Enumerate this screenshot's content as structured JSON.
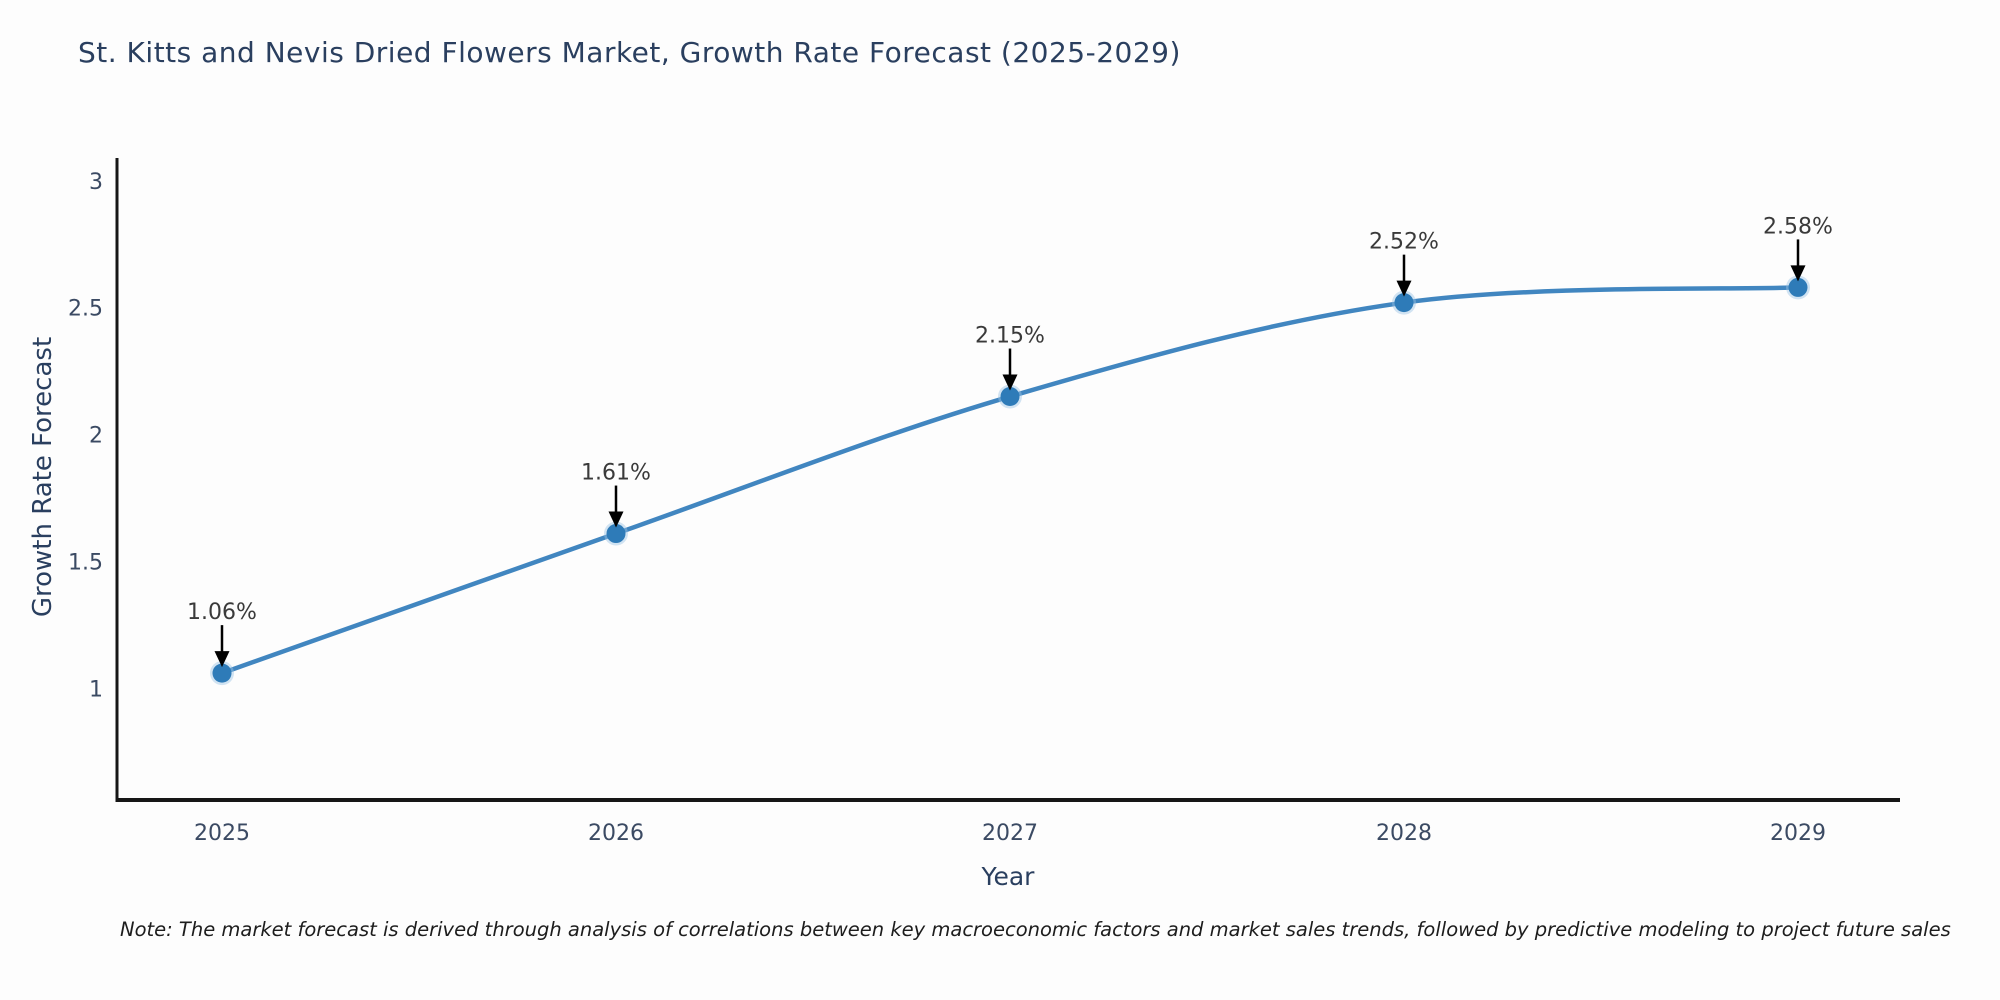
{
  "title": "St. Kitts and Nevis Dried Flowers Market, Growth Rate Forecast (2025-2029)",
  "note": "Note: The market forecast is derived through analysis of correlations between key macroeconomic factors and market sales trends, followed by predictive modeling to project future sales",
  "chart_data": {
    "type": "line",
    "title": "St. Kitts and Nevis Dried Flowers Market, Growth Rate Forecast (2025-2029)",
    "categories": [
      "2025",
      "2026",
      "2027",
      "2028",
      "2029"
    ],
    "values": [
      1.06,
      1.61,
      2.15,
      2.52,
      2.58
    ],
    "point_labels": [
      "1.06%",
      "1.61%",
      "2.15%",
      "2.52%",
      "2.58%"
    ],
    "xlabel": "Year",
    "ylabel": "Growth Rate Forecast",
    "yticks": [
      1,
      1.5,
      2,
      2.5,
      3
    ],
    "ylim": [
      0.56,
      3.09
    ],
    "grid": false,
    "legend": "none",
    "line_shape": "spline",
    "colors": {
      "line": "#4186c0",
      "marker": "#2e7bb8",
      "marker_halo": "#9cc4e4",
      "axis": "#161616",
      "annotation_arrow": "#000000",
      "text": "#2a3f5f"
    }
  }
}
